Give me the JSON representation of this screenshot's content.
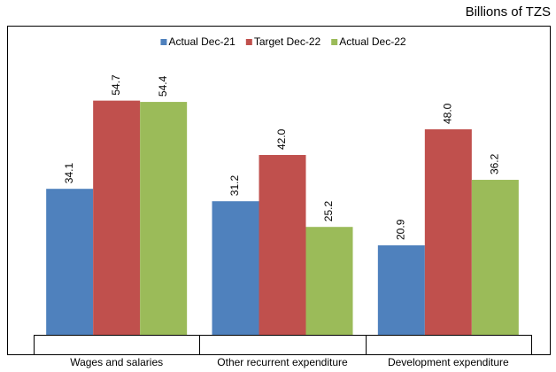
{
  "chart_data": {
    "type": "bar",
    "unit_label": "Billions of TZS",
    "categories": [
      "Wages and salaries",
      "Other recurrent expenditure",
      "Development expenditure"
    ],
    "series": [
      {
        "name": "Actual Dec-21",
        "color": "#4f81bd",
        "values": [
          34.1,
          31.2,
          20.9
        ],
        "value_labels": [
          "34.1",
          "31.2",
          "20.9"
        ]
      },
      {
        "name": "Target Dec-22",
        "color": "#c0504d",
        "values": [
          54.7,
          42.0,
          48.0
        ],
        "value_labels": [
          "54.7",
          "42.0",
          "48.0"
        ]
      },
      {
        "name": "Actual Dec-22",
        "color": "#9bbb59",
        "values": [
          54.4,
          25.2,
          36.2
        ],
        "value_labels": [
          "54.4",
          "25.2",
          "36.2"
        ]
      }
    ],
    "ylim": [
      0,
      60
    ],
    "legend": "top"
  }
}
